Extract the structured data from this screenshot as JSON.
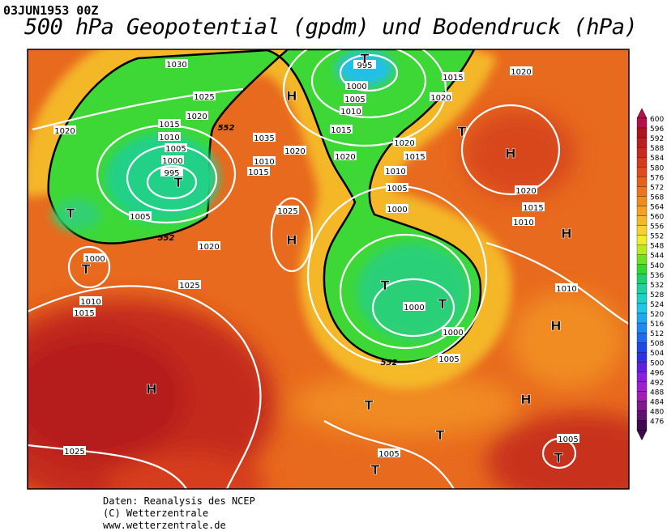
{
  "header": {
    "date": "03JUN1953 00Z",
    "title": "500 hPa Geopotential (gpdm) und Bodendruck (hPa)"
  },
  "legend": {
    "levels": [
      600,
      596,
      592,
      588,
      584,
      580,
      576,
      572,
      568,
      564,
      560,
      556,
      552,
      548,
      544,
      540,
      536,
      532,
      528,
      524,
      520,
      516,
      512,
      508,
      504,
      500,
      496,
      492,
      488,
      484,
      480,
      476
    ],
    "colors": [
      "#b4104a",
      "#b0141e",
      "#bc1e1e",
      "#c82a1e",
      "#d43a1e",
      "#e04a1e",
      "#e85e1e",
      "#ee7420",
      "#f28a22",
      "#f4a024",
      "#f6b82a",
      "#f8d030",
      "#f0ec28",
      "#b8ea20",
      "#70e020",
      "#30d830",
      "#20d070",
      "#20d0a0",
      "#20d0c8",
      "#20c8e8",
      "#20a8f0",
      "#2088f0",
      "#2068f0",
      "#2048e8",
      "#3030e0",
      "#6020e0",
      "#8820e0",
      "#a020d0",
      "#a020b0",
      "#801890",
      "#601070",
      "#400850"
    ]
  },
  "isobar_labels": [
    1030,
    1025,
    1020,
    1015,
    1010,
    1005,
    1000,
    995,
    1020,
    1005,
    1000,
    1010,
    1015,
    1025,
    1020,
    1025,
    995,
    1000,
    1005,
    1010,
    1015,
    1020,
    1020,
    1010,
    1015,
    1035,
    1015,
    1020,
    1020,
    1020,
    1015,
    1010,
    1005,
    1000,
    1020,
    1015,
    1010,
    1010,
    1000,
    1000,
    1005,
    1025,
    1005,
    1005
  ],
  "contour_labels": [
    552,
    552,
    552
  ],
  "pressure_centers": [
    "T",
    "T",
    "T",
    "H",
    "H",
    "T",
    "T",
    "H",
    "H",
    "T",
    "T",
    "H",
    "H",
    "H",
    "T",
    "T",
    "T",
    "T"
  ],
  "footer": {
    "line1": "Daten: Reanalysis des NCEP",
    "line2": "(C) Wetterzentrale",
    "line3": "www.wetterzentrale.de"
  }
}
